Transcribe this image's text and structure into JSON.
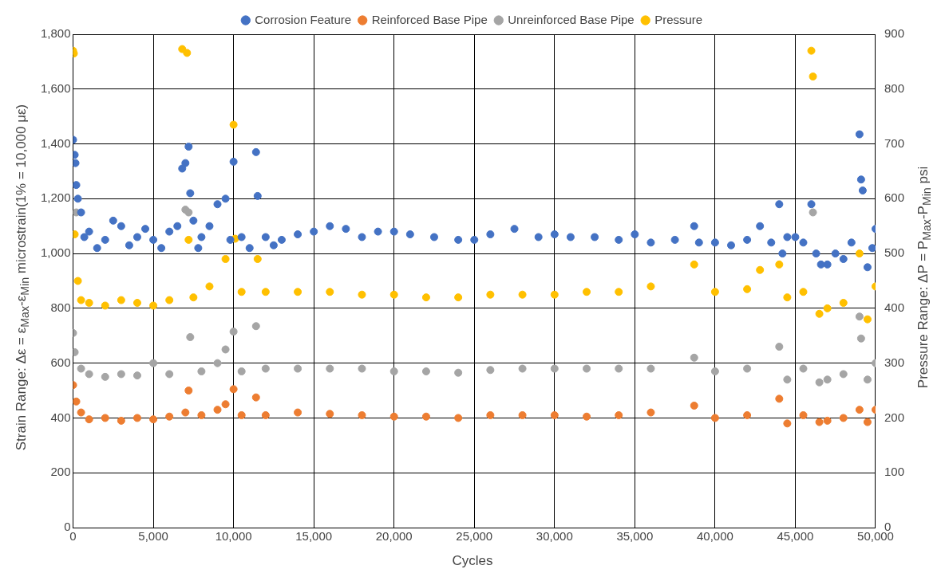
{
  "chart_data": {
    "type": "scatter",
    "xlabel": "Cycles",
    "ylabel": "Strain Range: Δε = ε$_{Max}$-ε$_{Min}$ microstrain(1% = 10,000 με)",
    "y2label": "Pressure Range: ΔP = P$_{Max}$-P$_{Min}$ psi",
    "xlim": [
      0,
      50000
    ],
    "xticks": [
      0,
      {
        "value": 5000,
        "label": "5,000"
      },
      {
        "value": 10000,
        "label": "10,000"
      },
      {
        "value": 15000,
        "label": "15,000"
      },
      {
        "value": 20000,
        "label": "20,000"
      },
      {
        "value": 25000,
        "label": "25,000"
      },
      {
        "value": 30000,
        "label": "30,000"
      },
      {
        "value": 35000,
        "label": "35,000"
      },
      {
        "value": 40000,
        "label": "40,000"
      },
      {
        "value": 45000,
        "label": "45,000"
      },
      {
        "value": 50000,
        "label": "50,000"
      }
    ],
    "ylim": [
      0,
      1800
    ],
    "yticks": [
      0,
      200,
      400,
      600,
      800,
      {
        "value": 1000,
        "label": "1,000"
      },
      {
        "value": 1200,
        "label": "1,200"
      },
      {
        "value": 1400,
        "label": "1,400"
      },
      {
        "value": 1600,
        "label": "1,600"
      },
      {
        "value": 1800,
        "label": "1,800"
      }
    ],
    "y2lim": [
      0,
      900
    ],
    "y2ticks": [
      0,
      100,
      200,
      300,
      400,
      500,
      600,
      700,
      800,
      900
    ],
    "grid": true,
    "legend": "top",
    "marker": "circle",
    "series": [
      {
        "name": "Corrosion Feature",
        "color": "#4472c4",
        "x": [
          0,
          100,
          150,
          200,
          300,
          500,
          700,
          1000,
          1500,
          2000,
          2500,
          3000,
          3500,
          4000,
          4500,
          5000,
          5500,
          6000,
          6500,
          6800,
          7000,
          7200,
          7300,
          7500,
          7800,
          8000,
          8500,
          9000,
          9500,
          9800,
          10000,
          10500,
          11000,
          11400,
          11500,
          12000,
          12500,
          13000,
          14000,
          15000,
          16000,
          17000,
          18000,
          19000,
          20000,
          21000,
          22500,
          24000,
          25000,
          26000,
          27500,
          29000,
          30000,
          31000,
          32500,
          34000,
          35000,
          36000,
          37500,
          38700,
          39000,
          40000,
          41000,
          42000,
          42800,
          43500,
          44000,
          44200,
          44500,
          45000,
          45500,
          46000,
          46300,
          46600,
          47000,
          47500,
          48000,
          48500,
          49000,
          49100,
          49200,
          49500,
          49800,
          50000
        ],
        "values": [
          1415,
          1360,
          1330,
          1250,
          1200,
          1150,
          1060,
          1080,
          1020,
          1050,
          1120,
          1100,
          1030,
          1060,
          1090,
          1050,
          1020,
          1080,
          1100,
          1310,
          1330,
          1390,
          1220,
          1120,
          1020,
          1060,
          1100,
          1180,
          1200,
          1050,
          1335,
          1060,
          1020,
          1370,
          1210,
          1060,
          1030,
          1050,
          1070,
          1080,
          1100,
          1090,
          1060,
          1080,
          1080,
          1070,
          1060,
          1050,
          1050,
          1070,
          1090,
          1060,
          1070,
          1060,
          1060,
          1050,
          1070,
          1040,
          1050,
          1100,
          1040,
          1040,
          1030,
          1050,
          1100,
          1040,
          1180,
          1000,
          1060,
          1060,
          1040,
          1180,
          1000,
          960,
          960,
          1000,
          980,
          1040,
          1435,
          1270,
          1230,
          950,
          1020,
          1090
        ]
      },
      {
        "name": "Reinforced Base Pipe",
        "color": "#ed7d31",
        "x": [
          0,
          200,
          500,
          1000,
          2000,
          3000,
          4000,
          5000,
          6000,
          7000,
          7200,
          8000,
          9000,
          9500,
          10000,
          10500,
          11400,
          12000,
          14000,
          16000,
          18000,
          20000,
          22000,
          24000,
          26000,
          28000,
          30000,
          32000,
          34000,
          36000,
          38700,
          40000,
          42000,
          44000,
          44500,
          45500,
          46500,
          47000,
          48000,
          49000,
          49500,
          50000
        ],
        "values": [
          520,
          460,
          420,
          395,
          400,
          390,
          400,
          395,
          405,
          420,
          500,
          410,
          430,
          450,
          505,
          410,
          475,
          410,
          420,
          415,
          410,
          405,
          405,
          400,
          410,
          410,
          410,
          405,
          410,
          420,
          445,
          400,
          410,
          470,
          380,
          410,
          385,
          390,
          400,
          430,
          385,
          430
        ]
      },
      {
        "name": "Unreinforced Base Pipe",
        "color": "#a5a5a5",
        "x": [
          0,
          100,
          200,
          500,
          1000,
          2000,
          3000,
          4000,
          5000,
          6000,
          7000,
          7200,
          7300,
          8000,
          9000,
          9500,
          10000,
          10500,
          11400,
          12000,
          14000,
          16000,
          18000,
          20000,
          22000,
          24000,
          26000,
          28000,
          30000,
          32000,
          34000,
          36000,
          38700,
          40000,
          42000,
          44000,
          44500,
          45500,
          46100,
          46500,
          47000,
          48000,
          49000,
          49100,
          49500,
          50000
        ],
        "values": [
          710,
          640,
          1150,
          580,
          560,
          550,
          560,
          555,
          600,
          560,
          1160,
          1150,
          695,
          570,
          600,
          650,
          715,
          570,
          735,
          580,
          580,
          580,
          580,
          570,
          570,
          565,
          575,
          580,
          580,
          580,
          580,
          580,
          620,
          570,
          580,
          660,
          540,
          580,
          1150,
          530,
          540,
          560,
          770,
          690,
          540,
          600
        ]
      },
      {
        "name": "Pressure",
        "color": "#ffc000",
        "axis": "y2",
        "x": [
          0,
          50,
          100,
          300,
          500,
          1000,
          2000,
          3000,
          4000,
          5000,
          6000,
          6800,
          7100,
          7200,
          7500,
          8500,
          9500,
          10000,
          10100,
          10500,
          11500,
          12000,
          14000,
          16000,
          18000,
          20000,
          22000,
          24000,
          26000,
          28000,
          30000,
          32000,
          34000,
          36000,
          38700,
          40000,
          42000,
          42800,
          44000,
          44500,
          45500,
          46000,
          46100,
          46500,
          47000,
          48000,
          49000,
          49500,
          50000
        ],
        "values": [
          870,
          865,
          535,
          450,
          415,
          410,
          405,
          415,
          410,
          405,
          415,
          873,
          866,
          525,
          420,
          440,
          490,
          735,
          527,
          430,
          490,
          430,
          430,
          430,
          425,
          425,
          420,
          420,
          425,
          425,
          425,
          430,
          430,
          440,
          480,
          430,
          435,
          470,
          480,
          420,
          430,
          870,
          823,
          390,
          400,
          410,
          500,
          380,
          440
        ]
      }
    ]
  }
}
